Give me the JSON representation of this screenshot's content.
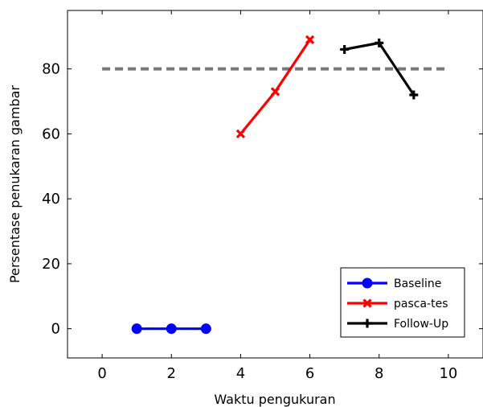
{
  "chart_data": {
    "type": "line",
    "xlabel": "Waktu pengukuran",
    "ylabel": "Persentase penukaran gambar",
    "xlim": [
      -1,
      11
    ],
    "ylim": [
      -9,
      98
    ],
    "xticks": [
      "0",
      "2",
      "4",
      "6",
      "8",
      "10"
    ],
    "yticks": [
      "0",
      "20",
      "40",
      "60",
      "80"
    ],
    "grid": false,
    "legend_position": "bottom-right",
    "reference_line": {
      "y": 80,
      "style": "dashed",
      "color": "#777777"
    },
    "series": [
      {
        "name": "Baseline",
        "color": "#0000ff",
        "marker": "circle",
        "x": [
          1,
          2,
          3
        ],
        "y": [
          0,
          0,
          0
        ]
      },
      {
        "name": "pasca-tes",
        "color": "#ff0000",
        "marker": "x",
        "x": [
          4,
          5,
          6
        ],
        "y": [
          60,
          73,
          89
        ]
      },
      {
        "name": "Follow-Up",
        "color": "#000000",
        "marker": "plus",
        "x": [
          7,
          8,
          9
        ],
        "y": [
          86,
          88,
          72
        ]
      }
    ]
  }
}
